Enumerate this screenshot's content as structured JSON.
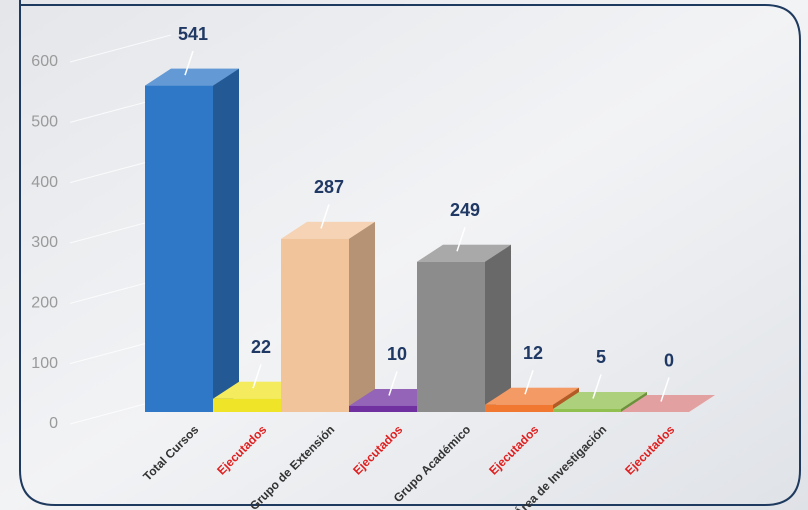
{
  "chart_data": {
    "type": "bar3d",
    "categories": [
      "Total Cursos",
      "Ejecutados",
      "Grupo de Extensión",
      "Ejecutados",
      "Grupo Académico",
      "Ejecutados",
      "Área de Investigación",
      "Ejecutados"
    ],
    "values": [
      541,
      22,
      287,
      10,
      249,
      12,
      5,
      0
    ],
    "colors": [
      "#2f78c8",
      "#f0e428",
      "#f2c49b",
      "#7030a0",
      "#8c8c8c",
      "#f07830",
      "#92c050",
      "#d98080"
    ],
    "category_label_colors": [
      "#333333",
      "#e02020",
      "#333333",
      "#e02020",
      "#333333",
      "#e02020",
      "#333333",
      "#e02020"
    ],
    "ylim": [
      0,
      600
    ],
    "yticks": [
      0,
      100,
      200,
      300,
      400,
      500,
      600
    ],
    "grid": true
  }
}
